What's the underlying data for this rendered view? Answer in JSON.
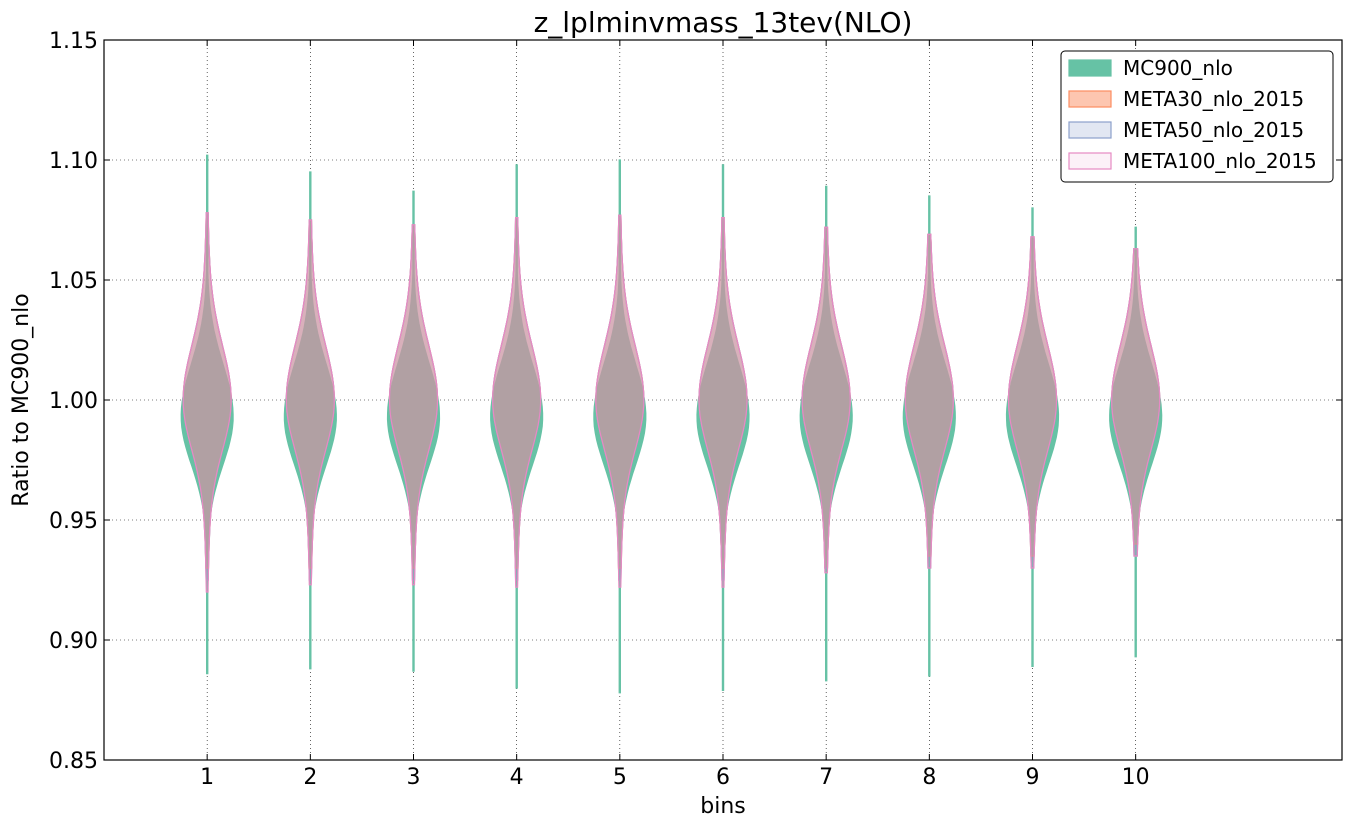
{
  "chart_data": {
    "type": "violin",
    "title": "z_lplminvmass_13tev(NLO)",
    "xlabel": "bins",
    "ylabel": "Ratio to MC900_nlo",
    "ylim": [
      0.85,
      1.15
    ],
    "xlim": [
      0,
      12
    ],
    "yticks": [
      "0.85",
      "0.90",
      "0.95",
      "1.00",
      "1.05",
      "1.10",
      "1.15"
    ],
    "categories": [
      "1",
      "2",
      "3",
      "4",
      "5",
      "6",
      "7",
      "8",
      "9",
      "10"
    ],
    "grid": true,
    "legend_position": "top-right",
    "series": [
      {
        "name": "MC900_nlo",
        "color": "#66c2a5",
        "fill_opacity": 1.0,
        "min": [
          0.886,
          0.888,
          0.887,
          0.88,
          0.878,
          0.879,
          0.883,
          0.885,
          0.889,
          0.893
        ],
        "max": [
          1.102,
          1.095,
          1.087,
          1.098,
          1.1,
          1.098,
          1.089,
          1.085,
          1.08,
          1.072
        ],
        "center": [
          0.993,
          0.993,
          0.993,
          0.993,
          0.993,
          0.993,
          0.993,
          0.993,
          0.993,
          0.993
        ]
      },
      {
        "name": "META30_nlo_2015",
        "color": "#fc8d62",
        "fill_opacity": 0.5,
        "min": [
          0.93,
          0.93,
          0.93,
          0.93,
          0.93,
          0.93,
          0.93,
          0.935,
          0.935,
          0.94
        ],
        "max": [
          1.078,
          1.075,
          1.073,
          1.076,
          1.077,
          1.076,
          1.072,
          1.069,
          1.068,
          1.063
        ],
        "center": [
          1.0,
          1.0,
          1.0,
          1.0,
          1.0,
          1.0,
          1.0,
          1.0,
          1.0,
          1.0
        ]
      },
      {
        "name": "META50_nlo_2015",
        "color": "#8da0cb",
        "fill_opacity": 0.35,
        "min": [
          0.925,
          0.925,
          0.925,
          0.925,
          0.925,
          0.925,
          0.93,
          0.93,
          0.93,
          0.935
        ],
        "max": [
          1.078,
          1.075,
          1.073,
          1.076,
          1.077,
          1.076,
          1.072,
          1.069,
          1.068,
          1.063
        ],
        "center": [
          1.0,
          1.0,
          1.0,
          1.0,
          1.0,
          1.0,
          1.0,
          1.0,
          1.0,
          1.0
        ]
      },
      {
        "name": "META100_nlo_2015",
        "color": "#e78ac3",
        "fill_opacity": 0.2,
        "min": [
          0.92,
          0.923,
          0.923,
          0.922,
          0.922,
          0.922,
          0.928,
          0.93,
          0.93,
          0.935
        ],
        "max": [
          1.078,
          1.075,
          1.073,
          1.076,
          1.077,
          1.076,
          1.072,
          1.069,
          1.068,
          1.063
        ],
        "center": [
          1.0,
          1.0,
          1.0,
          1.0,
          1.0,
          1.0,
          1.0,
          1.0,
          1.0,
          1.0
        ]
      }
    ]
  }
}
